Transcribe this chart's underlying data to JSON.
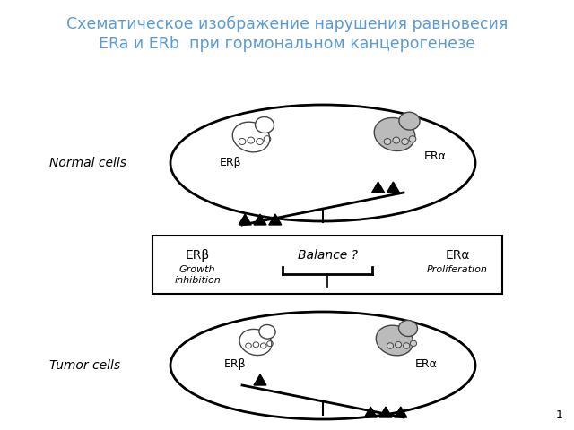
{
  "title_line1": "Схематическое изображение нарушения равновесия",
  "title_line2": "ERa и ERb  при гормональном канцерогенезе",
  "title_color": "#5B9BD5",
  "bg_color": "#FFFFFF",
  "page_number": "1",
  "normal_cells_label": "Normal cells",
  "tumor_cells_label": "Tumor cells",
  "normal_er_beta_label": "ERβ",
  "normal_er_alpha_label": "ERα",
  "tumor_er_beta_label": "ERβ",
  "tumor_er_alpha_label": "ERα",
  "box_er_beta_label": "ERβ",
  "box_balance_label": "Balance ?",
  "box_er_alpha_label": "ERα",
  "box_growth_label": "Growth\ninhibition",
  "box_prolif_label": "Proliferation"
}
